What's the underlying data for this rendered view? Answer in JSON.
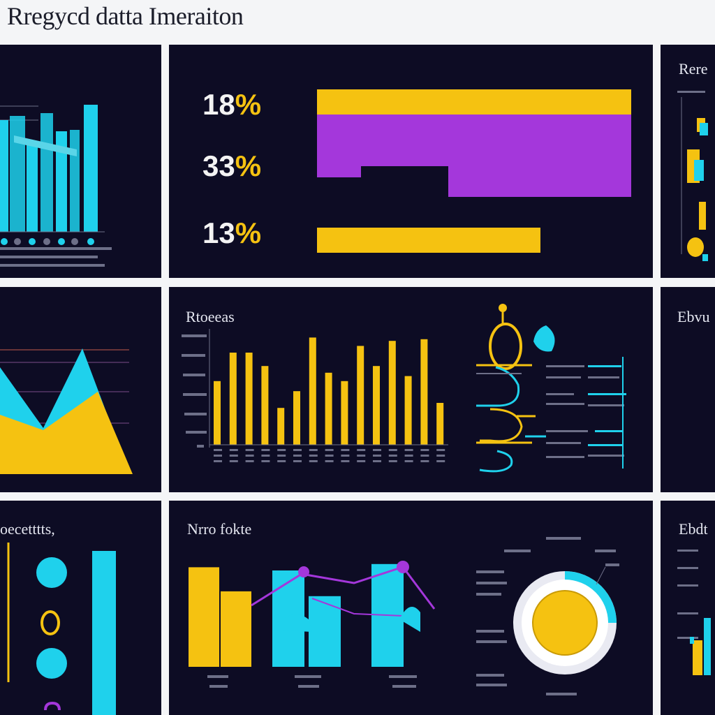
{
  "page": {
    "title": "Rregycd datta Imeraiton"
  },
  "colors": {
    "background": "#0d0c24",
    "cyan": "#1fd1ec",
    "yellow": "#f5c211",
    "purple": "#a437db",
    "page": "#f4f5f7"
  },
  "panels": {
    "p2": {
      "heading": ""
    },
    "p3": {
      "heading": "Rere"
    },
    "p5": {
      "heading": "Rtoeeas"
    },
    "p6": {
      "heading": "Ebvu"
    },
    "p7": {
      "heading": "oecetttts,"
    },
    "p8": {
      "heading": "Nrro fokte"
    },
    "p9": {
      "heading": "Ebdt"
    }
  },
  "chart_data": [
    {
      "id": "p1",
      "type": "bar",
      "title": "",
      "series": [
        {
          "values": [
            80,
            83,
            62,
            85,
            72,
            73,
            91
          ]
        }
      ]
    },
    {
      "id": "p2",
      "type": "bar",
      "orientation": "horizontal",
      "categories": [
        "18%",
        "33%",
        "13%"
      ],
      "values": [
        18,
        33,
        13
      ]
    },
    {
      "id": "p4",
      "type": "area",
      "series": [
        {
          "values": [
            5,
            60,
            25,
            72,
            10
          ]
        },
        {
          "values": [
            22,
            40,
            12,
            30,
            5
          ]
        }
      ]
    },
    {
      "id": "p5",
      "type": "bar",
      "values": [
        38,
        55,
        55,
        47,
        22,
        32,
        64,
        43,
        38,
        59,
        47,
        62,
        41,
        63,
        25
      ]
    },
    {
      "id": "p8",
      "type": "bar",
      "series": [
        {
          "name": "",
          "values": [
            62,
            47
          ]
        },
        {
          "name": "",
          "values": [
            30,
            22,
            32
          ]
        }
      ]
    },
    {
      "id": "p8-line",
      "type": "line",
      "values": [
        55,
        70,
        64,
        48,
        72
      ]
    },
    {
      "id": "p9",
      "type": "pie",
      "values": [
        62,
        23,
        15
      ]
    }
  ]
}
